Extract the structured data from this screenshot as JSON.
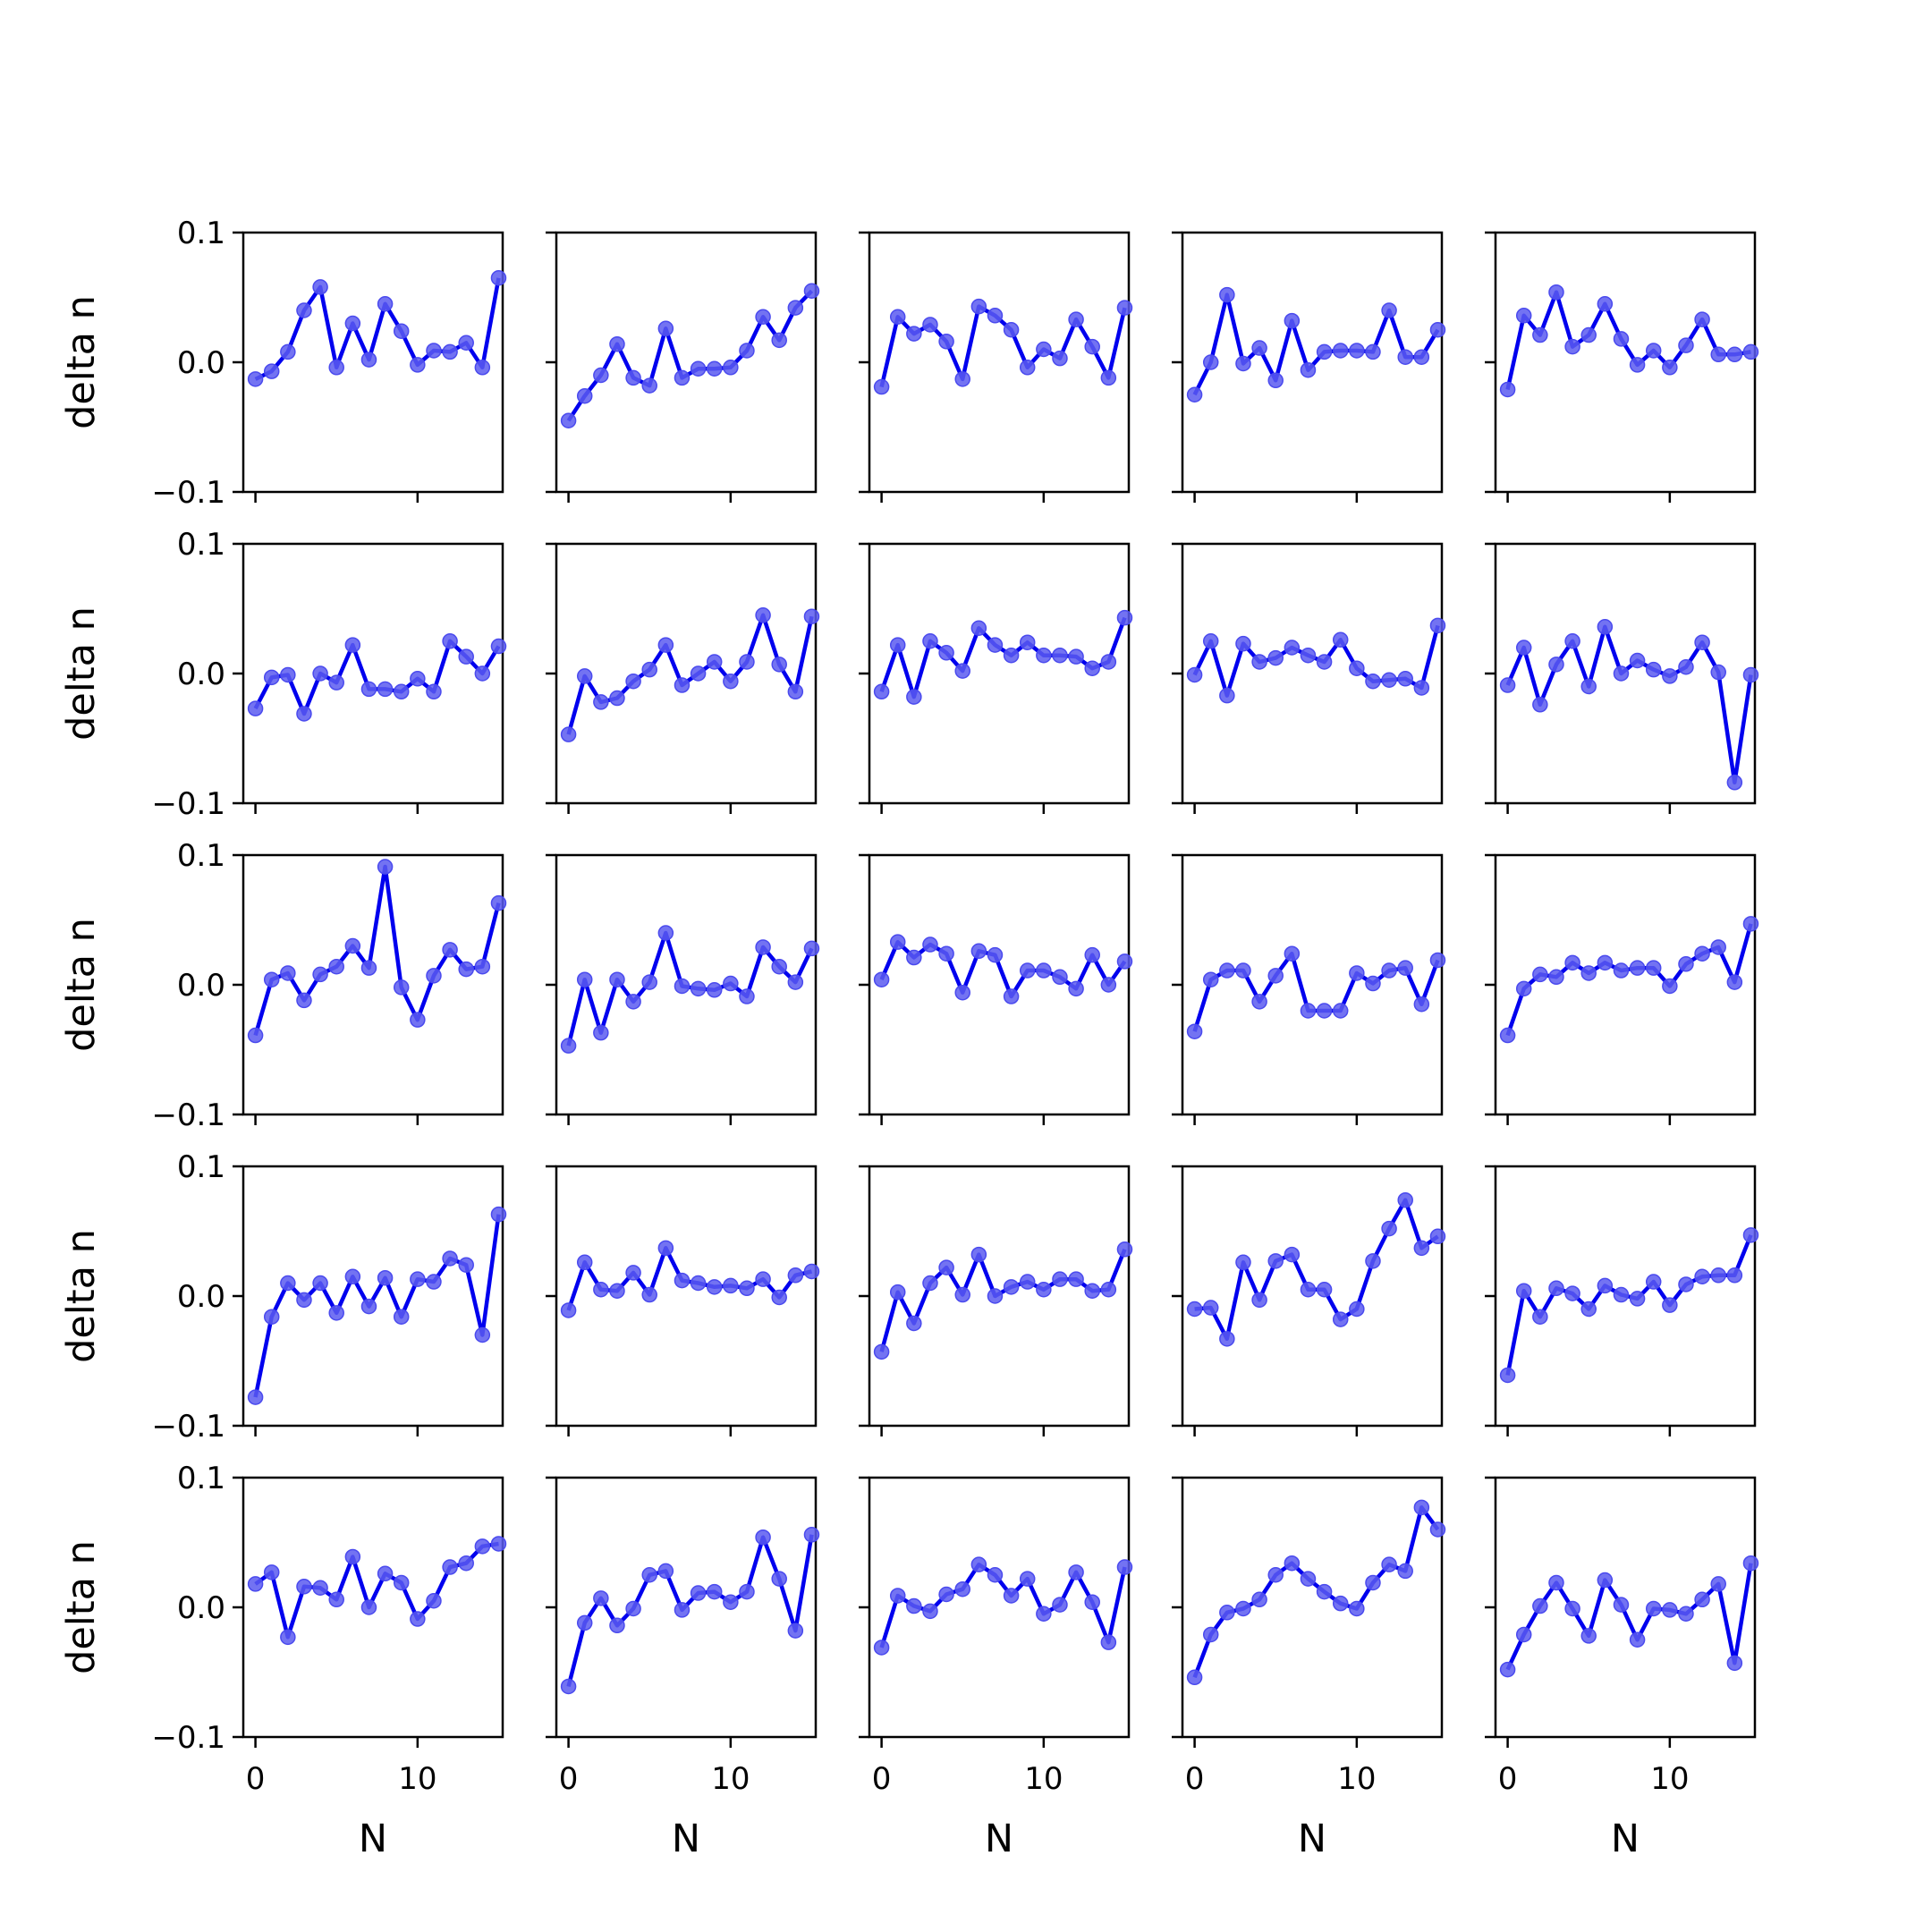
{
  "chart_data": {
    "type": "line",
    "layout": "5x5 small multiples",
    "xlabel": "N",
    "ylabel": "delta n",
    "xlim": [
      -0.75,
      15.25
    ],
    "ylim": [
      -0.1,
      0.1
    ],
    "yticks": [
      -0.1,
      0.0,
      0.1
    ],
    "ytick_labels": [
      "−0.1",
      "0.0",
      "0.1"
    ],
    "xticks": [
      0,
      10
    ],
    "xtick_labels": [
      "0",
      "10"
    ],
    "x": [
      0,
      1,
      2,
      3,
      4,
      5,
      6,
      7,
      8,
      9,
      10,
      11,
      12,
      13,
      14,
      15
    ],
    "colors": {
      "line": "#0000ee",
      "marker": "#5a5af0"
    },
    "panels": [
      [
        -0.013,
        -0.007,
        0.008,
        0.04,
        0.058,
        -0.004,
        0.03,
        0.002,
        0.045,
        0.024,
        -0.002,
        0.009,
        0.008,
        0.015,
        -0.004,
        0.065
      ],
      [
        -0.045,
        -0.026,
        -0.01,
        0.014,
        -0.012,
        -0.018,
        0.026,
        -0.012,
        -0.005,
        -0.005,
        -0.004,
        0.009,
        0.035,
        0.017,
        0.042,
        0.055
      ],
      [
        -0.019,
        0.035,
        0.022,
        0.029,
        0.016,
        -0.013,
        0.043,
        0.036,
        0.025,
        -0.004,
        0.01,
        0.003,
        0.033,
        0.012,
        -0.012,
        0.042
      ],
      [
        -0.025,
        0.0,
        0.052,
        -0.001,
        0.011,
        -0.014,
        0.032,
        -0.006,
        0.008,
        0.009,
        0.009,
        0.008,
        0.04,
        0.004,
        0.004,
        0.025
      ],
      [
        -0.021,
        0.036,
        0.021,
        0.054,
        0.012,
        0.021,
        0.045,
        0.018,
        -0.002,
        0.009,
        -0.004,
        0.013,
        0.033,
        0.006,
        0.006,
        0.008
      ],
      [
        -0.027,
        -0.003,
        -0.001,
        -0.031,
        0.0,
        -0.007,
        0.022,
        -0.012,
        -0.012,
        -0.014,
        -0.004,
        -0.014,
        0.025,
        0.013,
        0.0,
        0.021
      ],
      [
        -0.047,
        -0.002,
        -0.022,
        -0.019,
        -0.006,
        0.003,
        0.022,
        -0.009,
        0.0,
        0.009,
        -0.006,
        0.009,
        0.045,
        0.007,
        -0.014,
        0.044
      ],
      [
        -0.014,
        0.022,
        -0.018,
        0.025,
        0.016,
        0.002,
        0.035,
        0.022,
        0.014,
        0.024,
        0.014,
        0.014,
        0.013,
        0.004,
        0.009,
        0.043
      ],
      [
        -0.001,
        0.025,
        -0.017,
        0.023,
        0.009,
        0.012,
        0.02,
        0.014,
        0.009,
        0.026,
        0.004,
        -0.006,
        -0.005,
        -0.004,
        -0.011,
        0.037
      ],
      [
        -0.009,
        0.02,
        -0.024,
        0.007,
        0.025,
        -0.01,
        0.036,
        0.0,
        0.01,
        0.003,
        -0.002,
        0.005,
        0.024,
        0.001,
        -0.084,
        -0.001
      ],
      [
        -0.039,
        0.004,
        0.009,
        -0.012,
        0.008,
        0.014,
        0.03,
        0.013,
        0.091,
        -0.002,
        -0.027,
        0.007,
        0.027,
        0.012,
        0.014,
        0.063
      ],
      [
        -0.047,
        0.004,
        -0.037,
        0.004,
        -0.013,
        0.002,
        0.04,
        -0.001,
        -0.003,
        -0.004,
        0.001,
        -0.009,
        0.029,
        0.014,
        0.002,
        0.028
      ],
      [
        0.004,
        0.033,
        0.021,
        0.031,
        0.024,
        -0.006,
        0.026,
        0.023,
        -0.009,
        0.011,
        0.011,
        0.006,
        -0.003,
        0.023,
        0.0,
        0.018
      ],
      [
        -0.036,
        0.004,
        0.011,
        0.011,
        -0.013,
        0.007,
        0.024,
        -0.02,
        -0.02,
        -0.02,
        0.009,
        0.001,
        0.011,
        0.013,
        -0.015,
        0.019
      ],
      [
        -0.039,
        -0.003,
        0.008,
        0.006,
        0.017,
        0.009,
        0.017,
        0.011,
        0.013,
        0.013,
        -0.001,
        0.016,
        0.024,
        0.029,
        0.002,
        0.047
      ],
      [
        -0.078,
        -0.016,
        0.01,
        -0.003,
        0.01,
        -0.013,
        0.015,
        -0.008,
        0.014,
        -0.016,
        0.013,
        0.011,
        0.029,
        0.024,
        -0.03,
        0.063
      ],
      [
        -0.011,
        0.026,
        0.005,
        0.004,
        0.018,
        0.001,
        0.037,
        0.012,
        0.01,
        0.007,
        0.008,
        0.006,
        0.013,
        -0.001,
        0.016,
        0.019
      ],
      [
        -0.043,
        0.003,
        -0.021,
        0.01,
        0.022,
        0.001,
        0.032,
        0.0,
        0.007,
        0.011,
        0.005,
        0.013,
        0.013,
        0.004,
        0.005,
        0.036
      ],
      [
        -0.01,
        -0.009,
        -0.033,
        0.026,
        -0.003,
        0.027,
        0.032,
        0.005,
        0.005,
        -0.018,
        -0.01,
        0.027,
        0.052,
        0.074,
        0.037,
        0.046
      ],
      [
        -0.061,
        0.004,
        -0.016,
        0.006,
        0.002,
        -0.01,
        0.008,
        0.001,
        -0.002,
        0.011,
        -0.007,
        0.009,
        0.015,
        0.016,
        0.016,
        0.047
      ],
      [
        0.018,
        0.027,
        -0.023,
        0.016,
        0.015,
        0.006,
        0.039,
        0.0,
        0.026,
        0.019,
        -0.009,
        0.005,
        0.031,
        0.034,
        0.047,
        0.049
      ],
      [
        -0.061,
        -0.012,
        0.007,
        -0.014,
        -0.001,
        0.025,
        0.028,
        -0.002,
        0.011,
        0.012,
        0.004,
        0.012,
        0.054,
        0.022,
        -0.018,
        0.056
      ],
      [
        -0.031,
        0.009,
        0.001,
        -0.003,
        0.01,
        0.014,
        0.033,
        0.025,
        0.009,
        0.022,
        -0.005,
        0.002,
        0.027,
        0.004,
        -0.027,
        0.031
      ],
      [
        -0.054,
        -0.021,
        -0.004,
        -0.001,
        0.006,
        0.025,
        0.034,
        0.022,
        0.012,
        0.003,
        -0.001,
        0.019,
        0.033,
        0.028,
        0.077,
        0.06
      ],
      [
        -0.048,
        -0.021,
        0.001,
        0.019,
        -0.001,
        -0.022,
        0.021,
        0.002,
        -0.025,
        -0.001,
        -0.002,
        -0.005,
        0.006,
        0.018,
        -0.043,
        0.034
      ]
    ]
  }
}
